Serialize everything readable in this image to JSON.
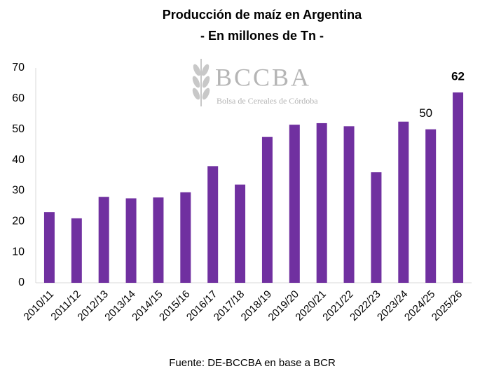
{
  "chart_data": {
    "type": "bar",
    "title": "Producción de maíz en Argentina",
    "subtitle": "- En millones de Tn -",
    "watermark_title": "BCCBA",
    "watermark_subtitle": "Bolsa de Cereales de Córdoba",
    "source": "Fuente: DE-BCCBA en base a BCR",
    "categories": [
      "2010/11",
      "2011/12",
      "2012/13",
      "2013/14",
      "2014/15",
      "2015/16",
      "2016/17",
      "2017/18",
      "2018/19",
      "2019/20",
      "2020/21",
      "2021/22",
      "2022/23",
      "2023/24",
      "2024/25",
      "2025/26"
    ],
    "values": [
      23,
      21,
      28,
      27.5,
      27.8,
      29.5,
      38,
      32,
      47.5,
      51.5,
      52,
      51,
      36,
      52.5,
      50,
      62
    ],
    "value_labels": [
      null,
      null,
      null,
      null,
      null,
      null,
      null,
      null,
      null,
      null,
      null,
      null,
      null,
      null,
      "50",
      "62"
    ],
    "color": "#7030a0",
    "ylim": [
      0,
      70
    ],
    "yticks": [
      0,
      10,
      20,
      30,
      40,
      50,
      60,
      70
    ],
    "grid": false
  }
}
